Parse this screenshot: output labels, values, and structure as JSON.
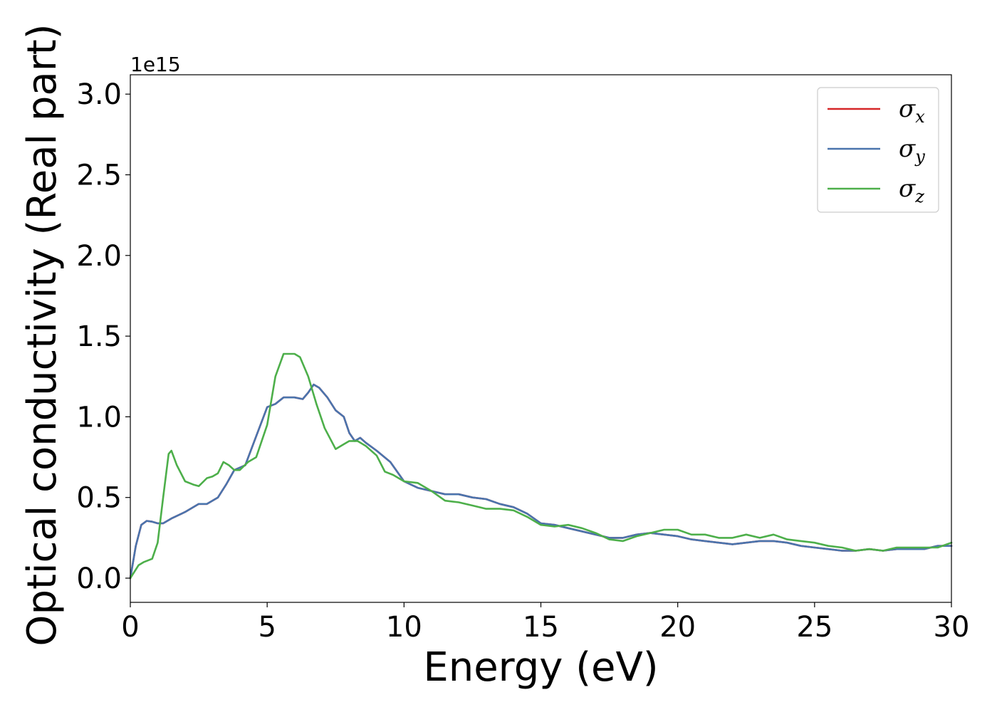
{
  "chart_data": {
    "type": "line",
    "xlabel": "Energy (eV)",
    "ylabel": "Optical conductivity (Real part)",
    "y_offset_label": "1e15",
    "xlim": [
      0,
      30
    ],
    "ylim": [
      -0.15,
      3.12
    ],
    "x_ticks": [
      0,
      5,
      10,
      15,
      20,
      25,
      30
    ],
    "x_tick_labels": [
      "0",
      "5",
      "10",
      "15",
      "20",
      "25",
      "30"
    ],
    "y_ticks": [
      0.0,
      0.5,
      1.0,
      1.5,
      2.0,
      2.5,
      3.0
    ],
    "y_tick_labels": [
      "0.0",
      "0.5",
      "1.0",
      "1.5",
      "2.0",
      "2.5",
      "3.0"
    ],
    "grid": false,
    "legend_position": "top-right",
    "series": [
      {
        "name": "σ",
        "subscript": "x",
        "color": "#d62728",
        "points": [
          [
            0,
            0
          ],
          [
            0.2,
            0.2
          ],
          [
            0.4,
            0.33
          ],
          [
            0.6,
            0.355
          ],
          [
            0.8,
            0.35
          ],
          [
            1.0,
            0.34
          ],
          [
            1.2,
            0.34
          ],
          [
            1.5,
            0.37
          ],
          [
            2.0,
            0.41
          ],
          [
            2.5,
            0.46
          ],
          [
            2.8,
            0.46
          ],
          [
            3.0,
            0.48
          ],
          [
            3.2,
            0.5
          ],
          [
            3.5,
            0.58
          ],
          [
            3.8,
            0.67
          ],
          [
            4.2,
            0.7
          ],
          [
            4.6,
            0.88
          ],
          [
            5.0,
            1.06
          ],
          [
            5.3,
            1.08
          ],
          [
            5.6,
            1.12
          ],
          [
            6.0,
            1.12
          ],
          [
            6.3,
            1.11
          ],
          [
            6.5,
            1.15
          ],
          [
            6.7,
            1.2
          ],
          [
            6.9,
            1.18
          ],
          [
            7.2,
            1.12
          ],
          [
            7.5,
            1.04
          ],
          [
            7.8,
            1.0
          ],
          [
            8.0,
            0.9
          ],
          [
            8.2,
            0.85
          ],
          [
            8.4,
            0.87
          ],
          [
            8.6,
            0.84
          ],
          [
            9.0,
            0.79
          ],
          [
            9.5,
            0.72
          ],
          [
            10.0,
            0.6
          ],
          [
            10.5,
            0.56
          ],
          [
            11.0,
            0.54
          ],
          [
            11.5,
            0.52
          ],
          [
            12.0,
            0.52
          ],
          [
            12.5,
            0.5
          ],
          [
            13.0,
            0.49
          ],
          [
            13.5,
            0.46
          ],
          [
            14.0,
            0.44
          ],
          [
            14.5,
            0.4
          ],
          [
            15.0,
            0.34
          ],
          [
            15.5,
            0.33
          ],
          [
            16.0,
            0.31
          ],
          [
            16.5,
            0.29
          ],
          [
            17.0,
            0.27
          ],
          [
            17.5,
            0.25
          ],
          [
            18.0,
            0.25
          ],
          [
            18.5,
            0.27
          ],
          [
            19.0,
            0.28
          ],
          [
            19.5,
            0.27
          ],
          [
            20.0,
            0.26
          ],
          [
            20.5,
            0.24
          ],
          [
            21.0,
            0.23
          ],
          [
            21.5,
            0.22
          ],
          [
            22.0,
            0.21
          ],
          [
            22.5,
            0.22
          ],
          [
            23.0,
            0.23
          ],
          [
            23.5,
            0.23
          ],
          [
            24.0,
            0.22
          ],
          [
            24.5,
            0.2
          ],
          [
            25.0,
            0.19
          ],
          [
            25.5,
            0.18
          ],
          [
            26.0,
            0.17
          ],
          [
            26.5,
            0.17
          ],
          [
            27.0,
            0.18
          ],
          [
            27.5,
            0.17
          ],
          [
            28.0,
            0.18
          ],
          [
            28.5,
            0.18
          ],
          [
            29.0,
            0.18
          ],
          [
            29.5,
            0.2
          ],
          [
            30.0,
            0.2
          ]
        ]
      },
      {
        "name": "σ",
        "subscript": "y",
        "color": "#4a74ad",
        "points": [
          [
            0,
            0
          ],
          [
            0.2,
            0.2
          ],
          [
            0.4,
            0.33
          ],
          [
            0.6,
            0.355
          ],
          [
            0.8,
            0.35
          ],
          [
            1.0,
            0.34
          ],
          [
            1.2,
            0.34
          ],
          [
            1.5,
            0.37
          ],
          [
            2.0,
            0.41
          ],
          [
            2.5,
            0.46
          ],
          [
            2.8,
            0.46
          ],
          [
            3.0,
            0.48
          ],
          [
            3.2,
            0.5
          ],
          [
            3.5,
            0.58
          ],
          [
            3.8,
            0.67
          ],
          [
            4.2,
            0.7
          ],
          [
            4.6,
            0.88
          ],
          [
            5.0,
            1.06
          ],
          [
            5.3,
            1.08
          ],
          [
            5.6,
            1.12
          ],
          [
            6.0,
            1.12
          ],
          [
            6.3,
            1.11
          ],
          [
            6.5,
            1.15
          ],
          [
            6.7,
            1.2
          ],
          [
            6.9,
            1.18
          ],
          [
            7.2,
            1.12
          ],
          [
            7.5,
            1.04
          ],
          [
            7.8,
            1.0
          ],
          [
            8.0,
            0.9
          ],
          [
            8.2,
            0.85
          ],
          [
            8.4,
            0.87
          ],
          [
            8.6,
            0.84
          ],
          [
            9.0,
            0.79
          ],
          [
            9.5,
            0.72
          ],
          [
            10.0,
            0.6
          ],
          [
            10.5,
            0.56
          ],
          [
            11.0,
            0.54
          ],
          [
            11.5,
            0.52
          ],
          [
            12.0,
            0.52
          ],
          [
            12.5,
            0.5
          ],
          [
            13.0,
            0.49
          ],
          [
            13.5,
            0.46
          ],
          [
            14.0,
            0.44
          ],
          [
            14.5,
            0.4
          ],
          [
            15.0,
            0.34
          ],
          [
            15.5,
            0.33
          ],
          [
            16.0,
            0.31
          ],
          [
            16.5,
            0.29
          ],
          [
            17.0,
            0.27
          ],
          [
            17.5,
            0.25
          ],
          [
            18.0,
            0.25
          ],
          [
            18.5,
            0.27
          ],
          [
            19.0,
            0.28
          ],
          [
            19.5,
            0.27
          ],
          [
            20.0,
            0.26
          ],
          [
            20.5,
            0.24
          ],
          [
            21.0,
            0.23
          ],
          [
            21.5,
            0.22
          ],
          [
            22.0,
            0.21
          ],
          [
            22.5,
            0.22
          ],
          [
            23.0,
            0.23
          ],
          [
            23.5,
            0.23
          ],
          [
            24.0,
            0.22
          ],
          [
            24.5,
            0.2
          ],
          [
            25.0,
            0.19
          ],
          [
            25.5,
            0.18
          ],
          [
            26.0,
            0.17
          ],
          [
            26.5,
            0.17
          ],
          [
            27.0,
            0.18
          ],
          [
            27.5,
            0.17
          ],
          [
            28.0,
            0.18
          ],
          [
            28.5,
            0.18
          ],
          [
            29.0,
            0.18
          ],
          [
            29.5,
            0.2
          ],
          [
            30.0,
            0.2
          ]
        ]
      },
      {
        "name": "σ",
        "subscript": "z",
        "color": "#4daf4a",
        "points": [
          [
            0,
            0
          ],
          [
            0.3,
            0.08
          ],
          [
            0.5,
            0.1
          ],
          [
            0.8,
            0.12
          ],
          [
            1.0,
            0.22
          ],
          [
            1.2,
            0.5
          ],
          [
            1.4,
            0.77
          ],
          [
            1.5,
            0.79
          ],
          [
            1.7,
            0.7
          ],
          [
            2.0,
            0.6
          ],
          [
            2.3,
            0.58
          ],
          [
            2.5,
            0.57
          ],
          [
            2.8,
            0.62
          ],
          [
            3.0,
            0.63
          ],
          [
            3.2,
            0.65
          ],
          [
            3.4,
            0.72
          ],
          [
            3.6,
            0.7
          ],
          [
            3.8,
            0.67
          ],
          [
            4.0,
            0.67
          ],
          [
            4.3,
            0.72
          ],
          [
            4.6,
            0.75
          ],
          [
            5.0,
            0.95
          ],
          [
            5.3,
            1.25
          ],
          [
            5.6,
            1.39
          ],
          [
            6.0,
            1.39
          ],
          [
            6.2,
            1.37
          ],
          [
            6.5,
            1.25
          ],
          [
            6.8,
            1.08
          ],
          [
            7.1,
            0.93
          ],
          [
            7.5,
            0.8
          ],
          [
            7.8,
            0.83
          ],
          [
            8.0,
            0.85
          ],
          [
            8.3,
            0.85
          ],
          [
            8.6,
            0.82
          ],
          [
            9.0,
            0.76
          ],
          [
            9.3,
            0.66
          ],
          [
            9.6,
            0.64
          ],
          [
            10.0,
            0.6
          ],
          [
            10.5,
            0.59
          ],
          [
            11.0,
            0.54
          ],
          [
            11.5,
            0.48
          ],
          [
            12.0,
            0.47
          ],
          [
            12.5,
            0.45
          ],
          [
            13.0,
            0.43
          ],
          [
            13.5,
            0.43
          ],
          [
            14.0,
            0.42
          ],
          [
            14.5,
            0.38
          ],
          [
            15.0,
            0.33
          ],
          [
            15.5,
            0.32
          ],
          [
            16.0,
            0.33
          ],
          [
            16.5,
            0.31
          ],
          [
            17.0,
            0.28
          ],
          [
            17.5,
            0.24
          ],
          [
            18.0,
            0.23
          ],
          [
            18.5,
            0.26
          ],
          [
            19.0,
            0.28
          ],
          [
            19.5,
            0.3
          ],
          [
            20.0,
            0.3
          ],
          [
            20.5,
            0.27
          ],
          [
            21.0,
            0.27
          ],
          [
            21.5,
            0.25
          ],
          [
            22.0,
            0.25
          ],
          [
            22.5,
            0.27
          ],
          [
            23.0,
            0.25
          ],
          [
            23.5,
            0.27
          ],
          [
            24.0,
            0.24
          ],
          [
            24.5,
            0.23
          ],
          [
            25.0,
            0.22
          ],
          [
            25.5,
            0.2
          ],
          [
            26.0,
            0.19
          ],
          [
            26.5,
            0.17
          ],
          [
            27.0,
            0.18
          ],
          [
            27.5,
            0.17
          ],
          [
            28.0,
            0.19
          ],
          [
            28.5,
            0.19
          ],
          [
            29.0,
            0.19
          ],
          [
            29.5,
            0.19
          ],
          [
            30.0,
            0.22
          ]
        ]
      }
    ]
  }
}
